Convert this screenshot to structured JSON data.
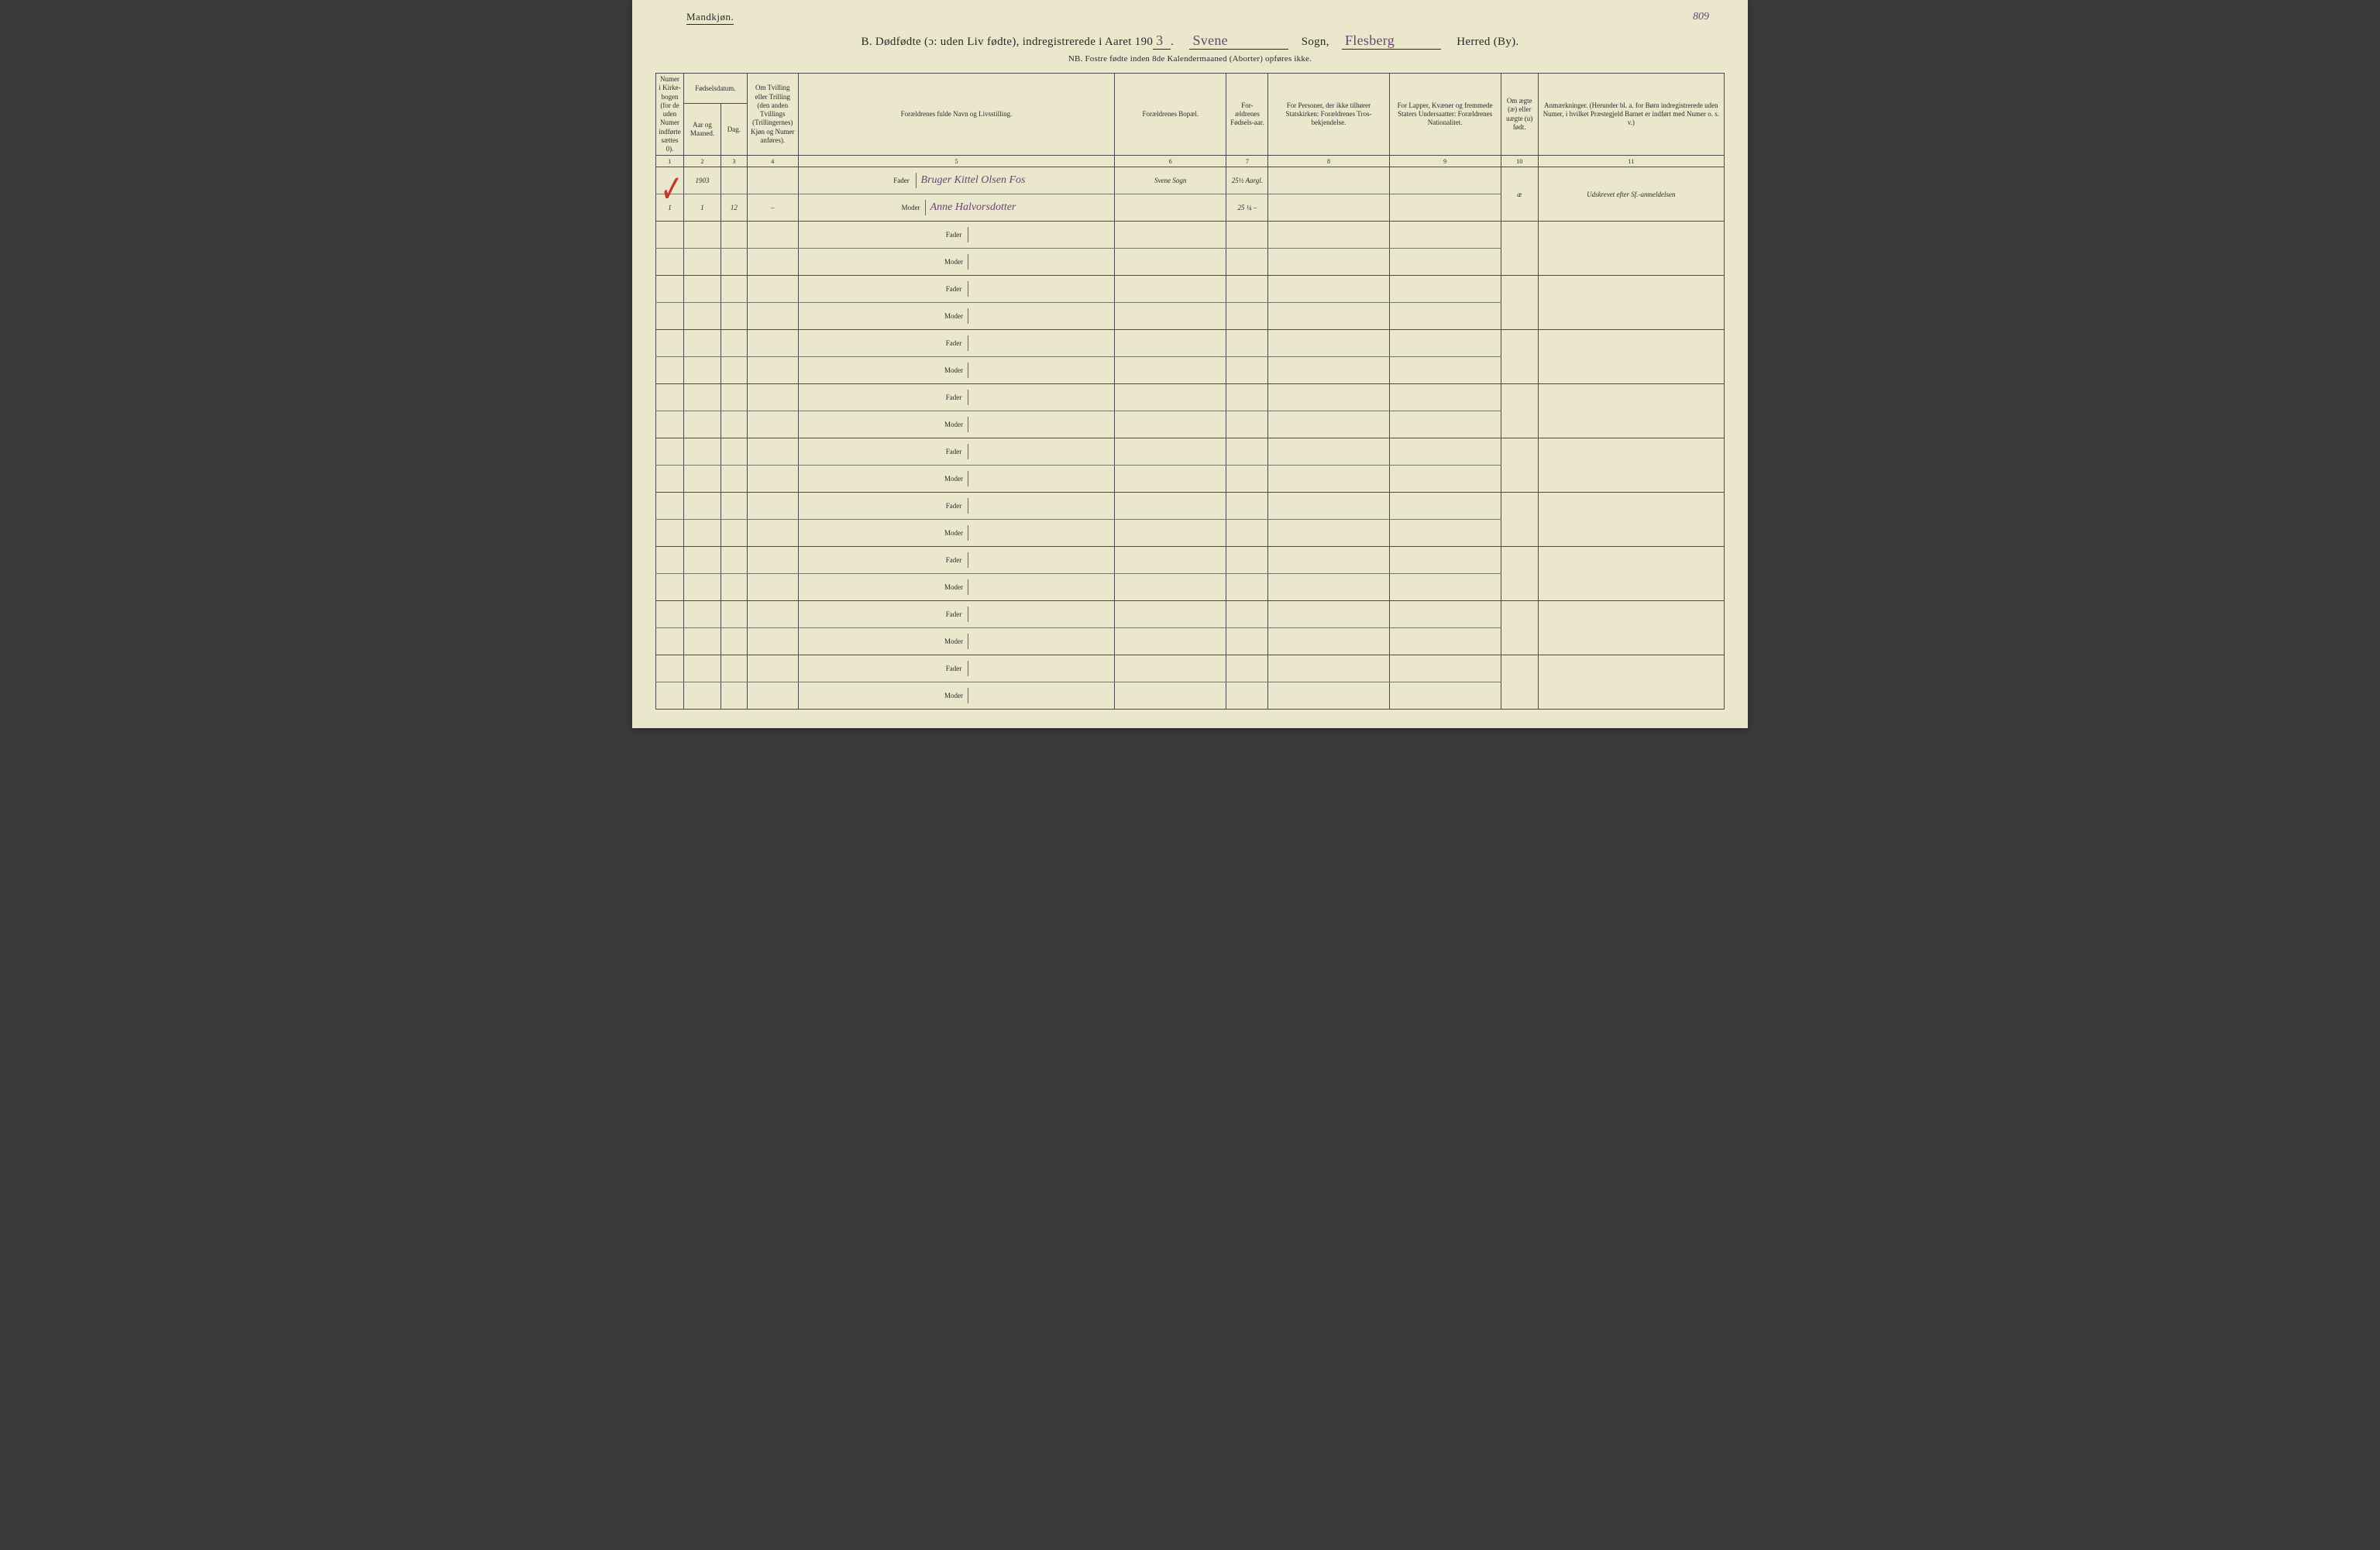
{
  "page_number_handwritten": "809",
  "gender_label": "Mandkjøn.",
  "title": {
    "prefix": "B.   Dødfødte (ɔ: uden Liv fødte), indregistrerede i Aaret 190",
    "year_digit": "3",
    "year_suffix": ".",
    "sogn_written": "Svene",
    "sogn_label": "Sogn,",
    "herred_written": "Flesberg",
    "herred_label": "Herred (By)."
  },
  "subtitle": "NB.  Fostre fødte inden 8de Kalendermaaned (Aborter) opføres ikke.",
  "columns": {
    "c1": "Numer i Kirke-bogen (for de uden Numer indførte sættes 0).",
    "c2_top": "Fødselsdatum.",
    "c2a": "Aar og Maaned.",
    "c2b": "Dag.",
    "c3": "Om Tvilling eller Trilling (den anden Tvillings (Trillingernes) Kjøn og Numer anføres).",
    "c4": "Forældrenes fulde Navn og Livsstilling.",
    "c5": "Forældrenes Bopæl.",
    "c6": "For-ældrenes Fødsels-aar.",
    "c7": "For Personer, der ikke tilhører Statskirken: Forældrenes Tros-bekjendelse.",
    "c8": "For Lapper, Kvæner og fremmede Staters Undersaatter: Forældrenes Nationalitet.",
    "c9": "Om ægte (æ) eller uægte (u) født.",
    "c10": "Anmærkninger. (Herunder bl. a. for Børn indregistrerede uden Numer, i hvilket Præstegjeld Barnet er indført med Numer o. s. v.)"
  },
  "colnums": [
    "1",
    "2",
    "3",
    "4",
    "5",
    "6",
    "7",
    "8",
    "9",
    "10",
    "11"
  ],
  "parent_labels": {
    "father": "Fader",
    "mother": "Moder"
  },
  "entry": {
    "year": "1903",
    "month": "1",
    "day": "12",
    "num": "1",
    "twin": "–",
    "father_name": "Bruger Kittel Olsen Fos",
    "mother_name": "Anne Halvorsdotter",
    "residence": "Svene Sogn",
    "father_birth": "25½ Aargl.",
    "mother_birth": "25 ¼ –",
    "legit": "æ",
    "remarks": "Udskrevet efter Sf.-anmeldelsen"
  },
  "checkmark": "✓",
  "colors": {
    "paper": "#ebe7cd",
    "ink_print": "#2a2a2a",
    "ink_hand": "#6a4470",
    "ink_red": "#c0392b",
    "border": "#4a4a4a"
  }
}
